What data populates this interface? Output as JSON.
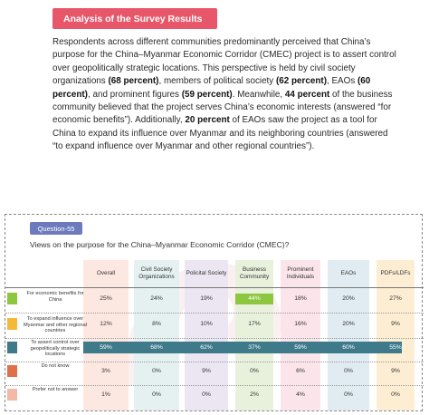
{
  "section": {
    "badge": "Analysis of the Survey Results"
  },
  "paragraph": {
    "t1": "Respondents across different communities predominantly perceived that China’s purpose for the China–Myanmar Economic Corridor (CMEC) project is to assert control over geopolitically strategic locations. This perspective is held by civil society organizations ",
    "b1": "(68 percent)",
    "t2": ", members of political society ",
    "b2": "(62 percent)",
    "t3": ", EAOs ",
    "b3": "(60 percent)",
    "t4": ", and prominent figures ",
    "b4": "(59 percent)",
    "t5": ". Meanwhile, ",
    "b5": "44 percent",
    "t6": " of the business community believed that the project serves China’s economic interests (answered “for economic benefits”). Additionally, ",
    "b6": "20 percent",
    "t7": " of EAOs saw the project as a tool for China to expand its influence over Myanmar and its neighboring countries (answered “to expand influence over Myanmar and other regional countries”)."
  },
  "survey": {
    "question_label": "Question-55",
    "question_text": "Views on the purpose for the China–Myanmar Economic Corridor (CMEC)?",
    "columns": [
      "Overall",
      "Civil Society Organizations",
      "Policital Society",
      "Business Community",
      "Prominent Individuals",
      "EAOs",
      "PDFs/LDFs"
    ],
    "rows": [
      {
        "label": "For economic benefits for China",
        "color": "#8dc63f",
        "values": [
          "25%",
          "24%",
          "19%",
          "44%",
          "18%",
          "20%",
          "27%"
        ]
      },
      {
        "label": "To expand influence over Myanmar and other regional countries",
        "color": "#f5b93a",
        "values": [
          "12%",
          "8%",
          "10%",
          "17%",
          "16%",
          "20%",
          "9%"
        ]
      },
      {
        "label": "To assert control over geopolitically strategic locations",
        "color": "#3e7a8a",
        "values": [
          "59%",
          "68%",
          "62%",
          "37%",
          "59%",
          "60%",
          "55%"
        ]
      },
      {
        "label": "Do not know",
        "color": "#e07048",
        "values": [
          "3%",
          "0%",
          "9%",
          "0%",
          "6%",
          "0%",
          "9%"
        ]
      },
      {
        "label": "Prefer not to answer",
        "color": "#f4b8a6",
        "values": [
          "1%",
          "0%",
          "0%",
          "2%",
          "4%",
          "0%",
          "0%"
        ]
      }
    ],
    "column_tints": [
      "#fde8e1",
      "#e5f1f1",
      "#ece6f2",
      "#e8f1dc",
      "#fbe4ea",
      "#e1ecf2",
      "#fdeed3"
    ]
  }
}
